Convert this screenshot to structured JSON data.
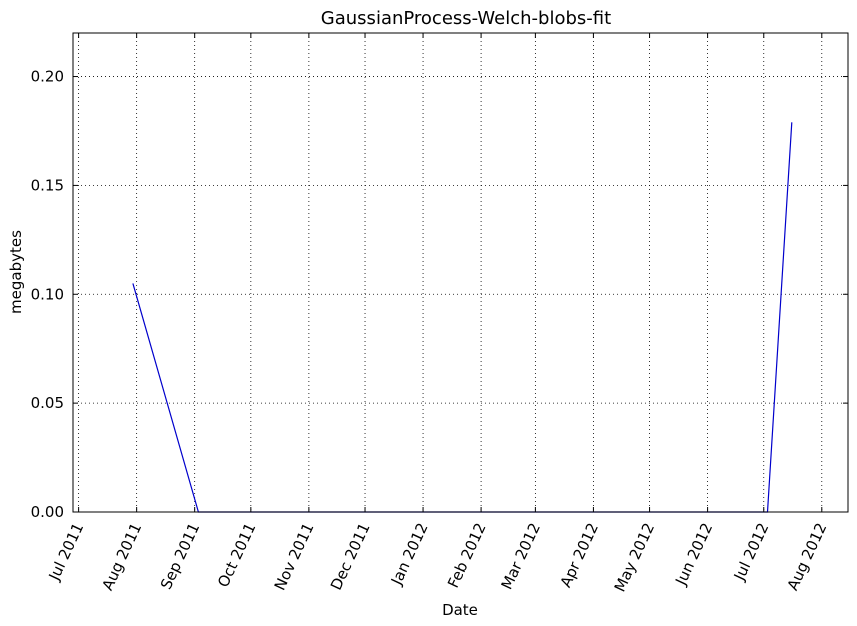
{
  "chart_data": {
    "type": "line",
    "title": "GaussianProcess-Welch-blobs-fit",
    "xlabel": "Date",
    "ylabel": "megabytes",
    "xlim": [
      "2011-06-28",
      "2012-08-15"
    ],
    "ylim": [
      0,
      0.22
    ],
    "x_ticks": [
      "2011-07-01",
      "2011-08-01",
      "2011-09-01",
      "2011-10-01",
      "2011-11-01",
      "2011-12-01",
      "2012-01-01",
      "2012-02-01",
      "2012-03-01",
      "2012-04-01",
      "2012-05-01",
      "2012-06-01",
      "2012-07-01",
      "2012-08-01"
    ],
    "x_tick_labels": [
      "Jul 2011",
      "Aug 2011",
      "Sep 2011",
      "Oct 2011",
      "Nov 2011",
      "Dec 2011",
      "Jan 2012",
      "Feb 2012",
      "Mar 2012",
      "Apr 2012",
      "May 2012",
      "Jun 2012",
      "Jul 2012",
      "Aug 2012"
    ],
    "y_ticks": [
      0.0,
      0.05,
      0.1,
      0.15,
      0.2
    ],
    "y_tick_labels": [
      "0.00",
      "0.05",
      "0.10",
      "0.15",
      "0.20"
    ],
    "grid": true,
    "line_color": "#0000cc",
    "series": [
      {
        "x": [
          "2011-07-30",
          "2011-09-03",
          "2012-07-03",
          "2012-07-16"
        ],
        "y": [
          0.105,
          0.0,
          0.0,
          0.179
        ]
      }
    ]
  }
}
